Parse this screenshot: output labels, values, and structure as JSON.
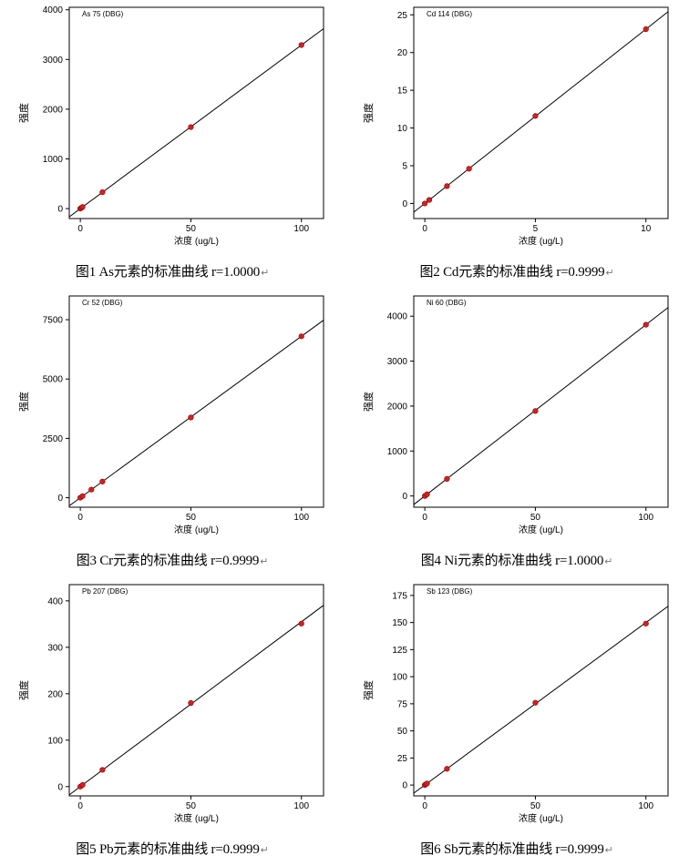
{
  "figures": [
    {
      "caption": "图1 As元素的标准曲线 r=1.0000",
      "chart_data": {
        "type": "scatter",
        "title": "As 75 (DBG)",
        "xlabel": "浓度 (ug/L)",
        "ylabel": "强度",
        "xlim": [
          -5,
          110
        ],
        "ylim": [
          -200,
          4050
        ],
        "xticks": [
          0,
          50,
          100
        ],
        "yticks": [
          0,
          1000,
          2000,
          3000,
          4000
        ],
        "points": [
          [
            0,
            0
          ],
          [
            0.5,
            16
          ],
          [
            1,
            33
          ],
          [
            10,
            330
          ],
          [
            50,
            1640
          ],
          [
            100,
            3290
          ]
        ],
        "fit": {
          "slope": 32.9,
          "intercept": 0
        }
      }
    },
    {
      "caption": "图2 Cd元素的标准曲线 r=0.9999",
      "chart_data": {
        "type": "scatter",
        "title": "Cd 114 (DBG)",
        "xlabel": "浓度 (ug/L)",
        "ylabel": "强度",
        "xlim": [
          -0.5,
          11
        ],
        "ylim": [
          -2,
          26
        ],
        "xticks": [
          0,
          5,
          10
        ],
        "yticks": [
          0,
          5,
          10,
          15,
          20,
          25
        ],
        "points": [
          [
            0,
            0
          ],
          [
            0.2,
            0.46
          ],
          [
            1,
            2.3
          ],
          [
            2,
            4.6
          ],
          [
            5,
            11.6
          ],
          [
            10,
            23.1
          ]
        ],
        "fit": {
          "slope": 2.31,
          "intercept": 0
        }
      }
    },
    {
      "caption": "图3 Cr元素的标准曲线 r=0.9999",
      "chart_data": {
        "type": "scatter",
        "title": "Cr 52 (DBG)",
        "xlabel": "浓度 (ug/L)",
        "ylabel": "强度",
        "xlim": [
          -5,
          110
        ],
        "ylim": [
          -400,
          8500
        ],
        "xticks": [
          0,
          50,
          100
        ],
        "yticks": [
          0,
          2500,
          5000,
          7500
        ],
        "points": [
          [
            0,
            0
          ],
          [
            1,
            68
          ],
          [
            5,
            340
          ],
          [
            10,
            680
          ],
          [
            50,
            3380
          ],
          [
            100,
            6800
          ]
        ],
        "fit": {
          "slope": 68,
          "intercept": 0
        }
      }
    },
    {
      "caption": "图4 Ni元素的标准曲线 r=1.0000",
      "chart_data": {
        "type": "scatter",
        "title": "Ni 60 (DBG)",
        "xlabel": "浓度 (ug/L)",
        "ylabel": "强度",
        "xlim": [
          -5,
          110
        ],
        "ylim": [
          -250,
          4450
        ],
        "xticks": [
          0,
          50,
          100
        ],
        "yticks": [
          0,
          1000,
          2000,
          3000,
          4000
        ],
        "points": [
          [
            0,
            0
          ],
          [
            1,
            38
          ],
          [
            10,
            380
          ],
          [
            50,
            1890
          ],
          [
            100,
            3810
          ]
        ],
        "fit": {
          "slope": 38.1,
          "intercept": 0
        }
      }
    },
    {
      "caption": "图5 Pb元素的标准曲线 r=0.9999",
      "chart_data": {
        "type": "scatter",
        "title": "Pb 207 (DBG)",
        "xlabel": "浓度 (ug/L)",
        "ylabel": "强度",
        "xlim": [
          -5,
          110
        ],
        "ylim": [
          -20,
          435
        ],
        "xticks": [
          0,
          50,
          100
        ],
        "yticks": [
          0,
          100,
          200,
          300,
          400
        ],
        "points": [
          [
            0,
            0
          ],
          [
            1,
            3.5
          ],
          [
            10,
            36
          ],
          [
            50,
            180
          ],
          [
            100,
            351
          ]
        ],
        "fit": {
          "slope": 3.55,
          "intercept": 0
        }
      }
    },
    {
      "caption": "图6 Sb元素的标准曲线 r=0.9999",
      "chart_data": {
        "type": "scatter",
        "title": "Sb 123 (DBG)",
        "xlabel": "浓度 (ug/L)",
        "ylabel": "强度",
        "xlim": [
          -5,
          110
        ],
        "ylim": [
          -10,
          185
        ],
        "xticks": [
          0,
          50,
          100
        ],
        "yticks": [
          0,
          25,
          50,
          75,
          100,
          125,
          150,
          175
        ],
        "points": [
          [
            0,
            0
          ],
          [
            0.5,
            0.75
          ],
          [
            1,
            1.5
          ],
          [
            10,
            15
          ],
          [
            50,
            76
          ],
          [
            100,
            149
          ]
        ],
        "fit": {
          "slope": 1.5,
          "intercept": 0
        }
      }
    }
  ],
  "colors": {
    "point": "#d42020",
    "line": "#000000",
    "axis": "#000000"
  }
}
